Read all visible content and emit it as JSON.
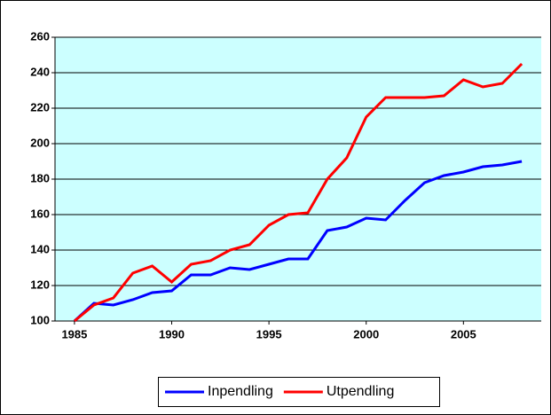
{
  "chart_data": {
    "type": "line",
    "x": [
      1985,
      1986,
      1987,
      1988,
      1989,
      1990,
      1991,
      1992,
      1993,
      1994,
      1995,
      1996,
      1997,
      1998,
      1999,
      2000,
      2001,
      2002,
      2003,
      2004,
      2005,
      2006,
      2007,
      2008
    ],
    "series": [
      {
        "name": "Inpendling",
        "color": "#0000ff",
        "values": [
          100,
          110,
          109,
          112,
          116,
          117,
          126,
          126,
          130,
          129,
          132,
          135,
          135,
          151,
          153,
          158,
          157,
          168,
          178,
          182,
          184,
          187,
          188,
          190
        ]
      },
      {
        "name": "Utpendling",
        "color": "#ff0000",
        "values": [
          100,
          109,
          113,
          127,
          131,
          122,
          132,
          134,
          140,
          143,
          154,
          160,
          161,
          180,
          192,
          215,
          226,
          226,
          226,
          227,
          236,
          232,
          234,
          245
        ]
      }
    ],
    "xlim": [
      1984,
      2009
    ],
    "xticks": [
      1985,
      1990,
      1995,
      2000,
      2005
    ],
    "ylim": [
      100,
      260
    ],
    "yticks": [
      100,
      120,
      140,
      160,
      180,
      200,
      220,
      240,
      260
    ],
    "grid": true,
    "legend": "bottom"
  }
}
